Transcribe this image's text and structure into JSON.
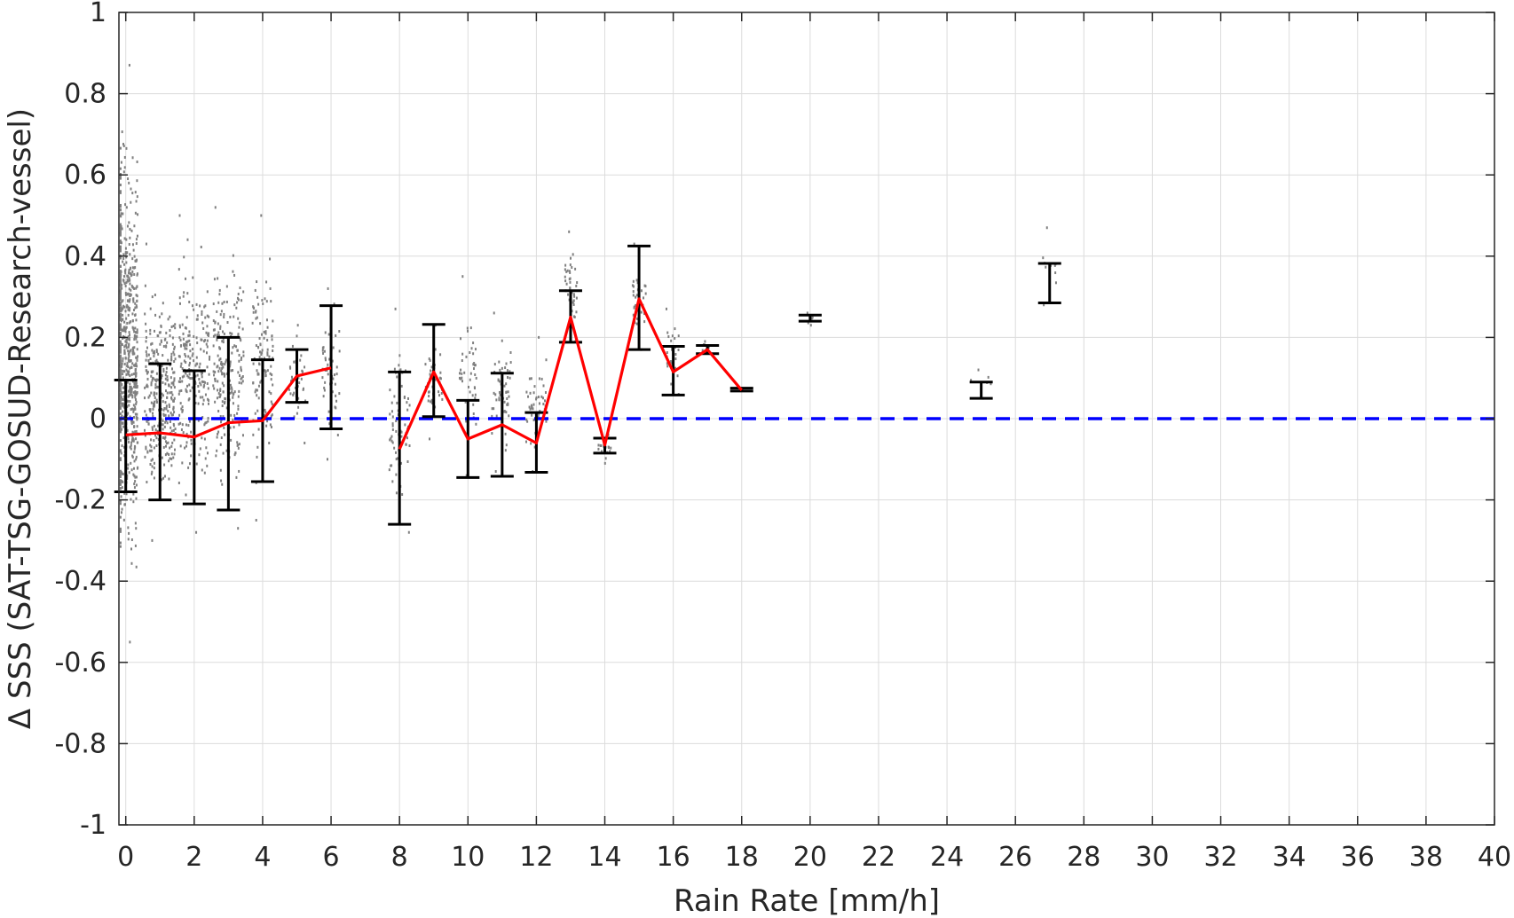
{
  "chart_data": {
    "type": "line",
    "xlabel": "Rain Rate [mm/h]",
    "ylabel": "Δ SSS (SAT-TSG-GOSUD-Research-vessel)",
    "xlim": [
      -0.2,
      40
    ],
    "ylim": [
      -1,
      1
    ],
    "xticks": [
      "0",
      "2",
      "4",
      "6",
      "8",
      "10",
      "12",
      "14",
      "16",
      "18",
      "20",
      "22",
      "24",
      "26",
      "28",
      "30",
      "32",
      "34",
      "36",
      "38",
      "40"
    ],
    "yticks": [
      "-1",
      "-0.8",
      "-0.6",
      "-0.4",
      "-0.2",
      "0",
      "0.2",
      "0.4",
      "0.6",
      "0.8",
      "1"
    ],
    "grid": true,
    "series": [
      {
        "kind": "mean-line",
        "color": "#ff0000",
        "x": [
          0,
          1,
          2,
          3,
          4,
          5,
          6
        ],
        "y": [
          -0.04,
          -0.035,
          -0.045,
          -0.01,
          -0.005,
          0.105,
          0.125
        ]
      },
      {
        "kind": "mean-line",
        "color": "#ff0000",
        "x": [
          8,
          9,
          10,
          11,
          12,
          13,
          14,
          15,
          16,
          17,
          18
        ],
        "y": [
          -0.075,
          0.115,
          -0.05,
          -0.015,
          -0.06,
          0.25,
          -0.065,
          0.295,
          0.115,
          0.17,
          0.07
        ]
      },
      {
        "kind": "zero-reference",
        "color": "#0000ff",
        "style": "dashed",
        "y": 0
      }
    ],
    "errorbars": [
      {
        "x": 0,
        "lo": -0.18,
        "hi": 0.095
      },
      {
        "x": 1,
        "lo": -0.2,
        "hi": 0.135
      },
      {
        "x": 2,
        "lo": -0.21,
        "hi": 0.118
      },
      {
        "x": 3,
        "lo": -0.225,
        "hi": 0.2
      },
      {
        "x": 4,
        "lo": -0.155,
        "hi": 0.145
      },
      {
        "x": 5,
        "lo": 0.04,
        "hi": 0.17
      },
      {
        "x": 6,
        "lo": -0.025,
        "hi": 0.278
      },
      {
        "x": 8,
        "lo": -0.26,
        "hi": 0.115
      },
      {
        "x": 9,
        "lo": 0.005,
        "hi": 0.232
      },
      {
        "x": 10,
        "lo": -0.145,
        "hi": 0.045
      },
      {
        "x": 11,
        "lo": -0.142,
        "hi": 0.112
      },
      {
        "x": 12,
        "lo": -0.132,
        "hi": 0.015
      },
      {
        "x": 13,
        "lo": 0.188,
        "hi": 0.315
      },
      {
        "x": 14,
        "lo": -0.085,
        "hi": -0.048
      },
      {
        "x": 15,
        "lo": 0.17,
        "hi": 0.425
      },
      {
        "x": 16,
        "lo": 0.058,
        "hi": 0.178
      },
      {
        "x": 17,
        "lo": 0.16,
        "hi": 0.18
      },
      {
        "x": 18,
        "lo": 0.068,
        "hi": 0.075
      },
      {
        "x": 20,
        "lo": 0.24,
        "hi": 0.255
      },
      {
        "x": 25,
        "lo": 0.05,
        "hi": 0.09
      },
      {
        "x": 27,
        "lo": 0.285,
        "hi": 0.382
      }
    ],
    "scatter_clusters": [
      {
        "x": 0,
        "spread": 0.35,
        "ymin": -0.55,
        "ymax": 0.87,
        "n": 700
      },
      {
        "x": 1,
        "spread": 0.45,
        "ymin": -0.3,
        "ymax": 0.43,
        "n": 320
      },
      {
        "x": 2,
        "spread": 0.45,
        "ymin": -0.28,
        "ymax": 0.5,
        "n": 220
      },
      {
        "x": 3,
        "spread": 0.45,
        "ymin": -0.27,
        "ymax": 0.52,
        "n": 220
      },
      {
        "x": 4,
        "spread": 0.3,
        "ymin": -0.25,
        "ymax": 0.5,
        "n": 110
      },
      {
        "x": 5,
        "spread": 0.25,
        "ymin": -0.06,
        "ymax": 0.23,
        "n": 40
      },
      {
        "x": 6,
        "spread": 0.25,
        "ymin": -0.1,
        "ymax": 0.32,
        "n": 50
      },
      {
        "x": 8,
        "spread": 0.3,
        "ymin": -0.28,
        "ymax": 0.27,
        "n": 70
      },
      {
        "x": 9,
        "spread": 0.25,
        "ymin": -0.05,
        "ymax": 0.23,
        "n": 45
      },
      {
        "x": 10,
        "spread": 0.25,
        "ymin": -0.14,
        "ymax": 0.35,
        "n": 45
      },
      {
        "x": 11,
        "spread": 0.3,
        "ymin": -0.13,
        "ymax": 0.26,
        "n": 55
      },
      {
        "x": 12,
        "spread": 0.3,
        "ymin": -0.13,
        "ymax": 0.2,
        "n": 45
      },
      {
        "x": 13,
        "spread": 0.2,
        "ymin": 0.19,
        "ymax": 0.46,
        "n": 40
      },
      {
        "x": 14,
        "spread": 0.2,
        "ymin": -0.11,
        "ymax": -0.04,
        "n": 18
      },
      {
        "x": 15,
        "spread": 0.2,
        "ymin": 0.17,
        "ymax": 0.43,
        "n": 35
      },
      {
        "x": 16,
        "spread": 0.2,
        "ymin": 0.06,
        "ymax": 0.27,
        "n": 25
      },
      {
        "x": 17,
        "spread": 0.15,
        "ymin": 0.16,
        "ymax": 0.19,
        "n": 10
      },
      {
        "x": 20,
        "spread": 0.1,
        "ymin": 0.23,
        "ymax": 0.26,
        "n": 6
      },
      {
        "x": 25,
        "spread": 0.3,
        "ymin": 0.05,
        "ymax": 0.12,
        "n": 6
      },
      {
        "x": 27,
        "spread": 0.2,
        "ymin": 0.28,
        "ymax": 0.47,
        "n": 10
      }
    ],
    "colors": {
      "scatter": "#808080",
      "errorbar": "#000000",
      "grid": "#dcdcdc",
      "axis": "#262626"
    }
  }
}
